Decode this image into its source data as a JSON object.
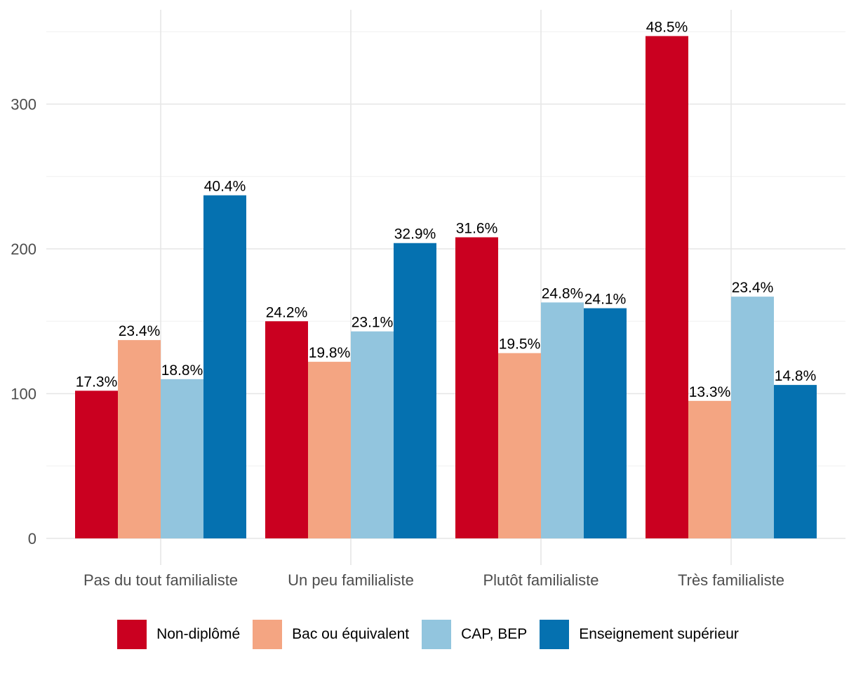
{
  "chart_data": {
    "type": "bar",
    "title": "",
    "xlabel": "",
    "ylabel": "",
    "categories": [
      "Pas du tout familialiste",
      "Un peu familialiste",
      "Plutôt familialiste",
      "Très familialiste"
    ],
    "ylim": [
      -3,
      358
    ],
    "y_ticks": [
      0,
      100,
      200,
      300
    ],
    "grid": true,
    "legend_position": "bottom",
    "series": [
      {
        "name": "Non-diplômé",
        "color": "#ca0020",
        "values": [
          102,
          150,
          208,
          347
        ],
        "labels": [
          "17.3%",
          "24.2%",
          "31.6%",
          "48.5%"
        ]
      },
      {
        "name": "Bac ou équivalent",
        "color": "#f4a582",
        "values": [
          137,
          122,
          128,
          95
        ],
        "labels": [
          "23.4%",
          "19.8%",
          "19.5%",
          "13.3%"
        ]
      },
      {
        "name": "CAP, BEP",
        "color": "#92c5de",
        "values": [
          110,
          143,
          163,
          167
        ],
        "labels": [
          "18.8%",
          "23.1%",
          "24.8%",
          "23.4%"
        ]
      },
      {
        "name": "Enseignement supérieur",
        "color": "#0571b0",
        "values": [
          237,
          204,
          159,
          106
        ],
        "labels": [
          "40.4%",
          "32.9%",
          "24.1%",
          "14.8%"
        ]
      }
    ]
  }
}
